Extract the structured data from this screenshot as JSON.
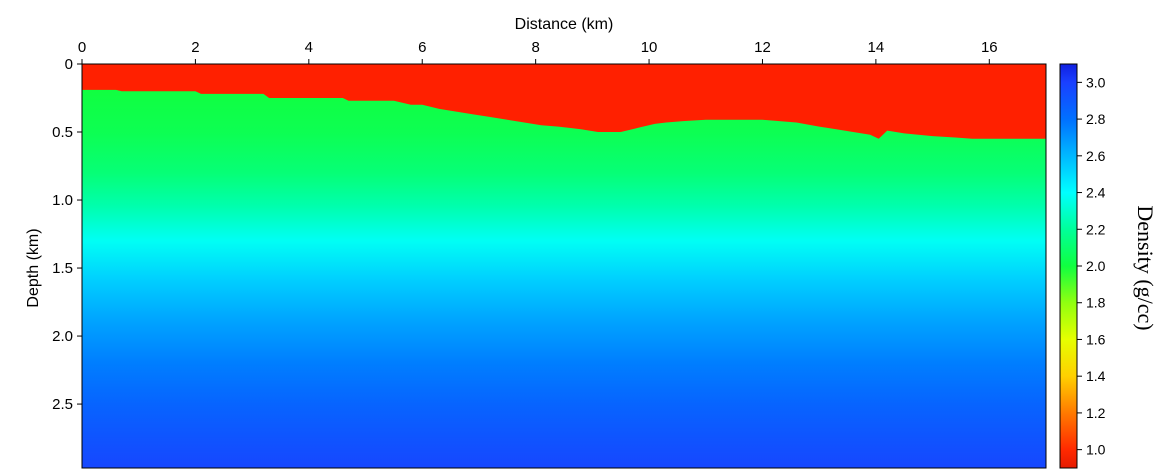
{
  "chart_data": {
    "type": "heatmap",
    "title": "",
    "xlabel": "Distance (km)",
    "ylabel": "Depth (km)",
    "xlim": [
      0,
      17
    ],
    "ylim": [
      0,
      2.97
    ],
    "x_ticks": [
      0,
      2,
      4,
      6,
      8,
      10,
      12,
      14,
      16
    ],
    "x_tick_labels": [
      "0",
      "2",
      "4",
      "6",
      "8",
      "10",
      "12",
      "14",
      "16"
    ],
    "y_ticks": [
      0,
      0.5,
      1.0,
      1.5,
      2.0,
      2.5
    ],
    "y_tick_labels": [
      "0",
      "0.5",
      "1.0",
      "1.5",
      "2.0",
      "2.5"
    ],
    "x_axis_position": "top",
    "colorbar": {
      "label": "Density (g/cc)",
      "range": [
        0.9,
        3.1
      ],
      "ticks": [
        1.0,
        1.2,
        1.4,
        1.6,
        1.8,
        2.0,
        2.2,
        2.4,
        2.6,
        2.8,
        3.0
      ],
      "tick_labels": [
        "1.0",
        "1.2",
        "1.4",
        "1.6",
        "1.8",
        "2.0",
        "2.2",
        "2.4",
        "2.6",
        "2.8",
        "3.0"
      ],
      "colors": [
        {
          "value": 0.9,
          "color": "#e61a00"
        },
        {
          "value": 1.0,
          "color": "#ff2a00"
        },
        {
          "value": 1.2,
          "color": "#ff7a00"
        },
        {
          "value": 1.4,
          "color": "#ffd000"
        },
        {
          "value": 1.6,
          "color": "#e6ff00"
        },
        {
          "value": 1.8,
          "color": "#90ff10"
        },
        {
          "value": 2.0,
          "color": "#10ff40"
        },
        {
          "value": 2.2,
          "color": "#00ff9a"
        },
        {
          "value": 2.4,
          "color": "#00ffff"
        },
        {
          "value": 2.6,
          "color": "#00b8ff"
        },
        {
          "value": 2.8,
          "color": "#0070ff"
        },
        {
          "value": 3.0,
          "color": "#1a40ff"
        },
        {
          "value": 3.1,
          "color": "#1020e0"
        }
      ]
    },
    "water_layer": {
      "density": 1.0,
      "color": "#ff2000",
      "seafloor_depth": {
        "x": [
          0,
          0.6,
          0.7,
          2.0,
          2.1,
          3.2,
          3.3,
          4.6,
          4.7,
          5.5,
          5.8,
          6.0,
          6.3,
          6.6,
          6.9,
          7.2,
          7.5,
          7.8,
          8.1,
          8.4,
          8.8,
          9.1,
          9.5,
          9.8,
          10.1,
          10.3,
          10.6,
          11.0,
          12.0,
          12.6,
          13.0,
          13.3,
          13.6,
          13.9,
          14.05,
          14.2,
          14.5,
          15.0,
          15.4,
          15.7,
          17.0
        ],
        "depth": [
          0.19,
          0.19,
          0.2,
          0.2,
          0.22,
          0.22,
          0.25,
          0.25,
          0.27,
          0.27,
          0.3,
          0.3,
          0.33,
          0.35,
          0.37,
          0.39,
          0.41,
          0.43,
          0.45,
          0.46,
          0.48,
          0.5,
          0.5,
          0.47,
          0.44,
          0.43,
          0.42,
          0.41,
          0.41,
          0.43,
          0.46,
          0.48,
          0.5,
          0.52,
          0.55,
          0.49,
          0.51,
          0.53,
          0.54,
          0.55,
          0.55
        ]
      }
    },
    "sediment_density_gradient": {
      "depth": [
        0.19,
        0.5,
        0.8,
        1.05,
        1.3,
        1.6,
        1.9,
        2.2,
        2.5,
        2.8,
        2.97
      ],
      "density": [
        2.0,
        2.04,
        2.12,
        2.24,
        2.38,
        2.54,
        2.66,
        2.76,
        2.85,
        2.93,
        2.97
      ]
    }
  }
}
